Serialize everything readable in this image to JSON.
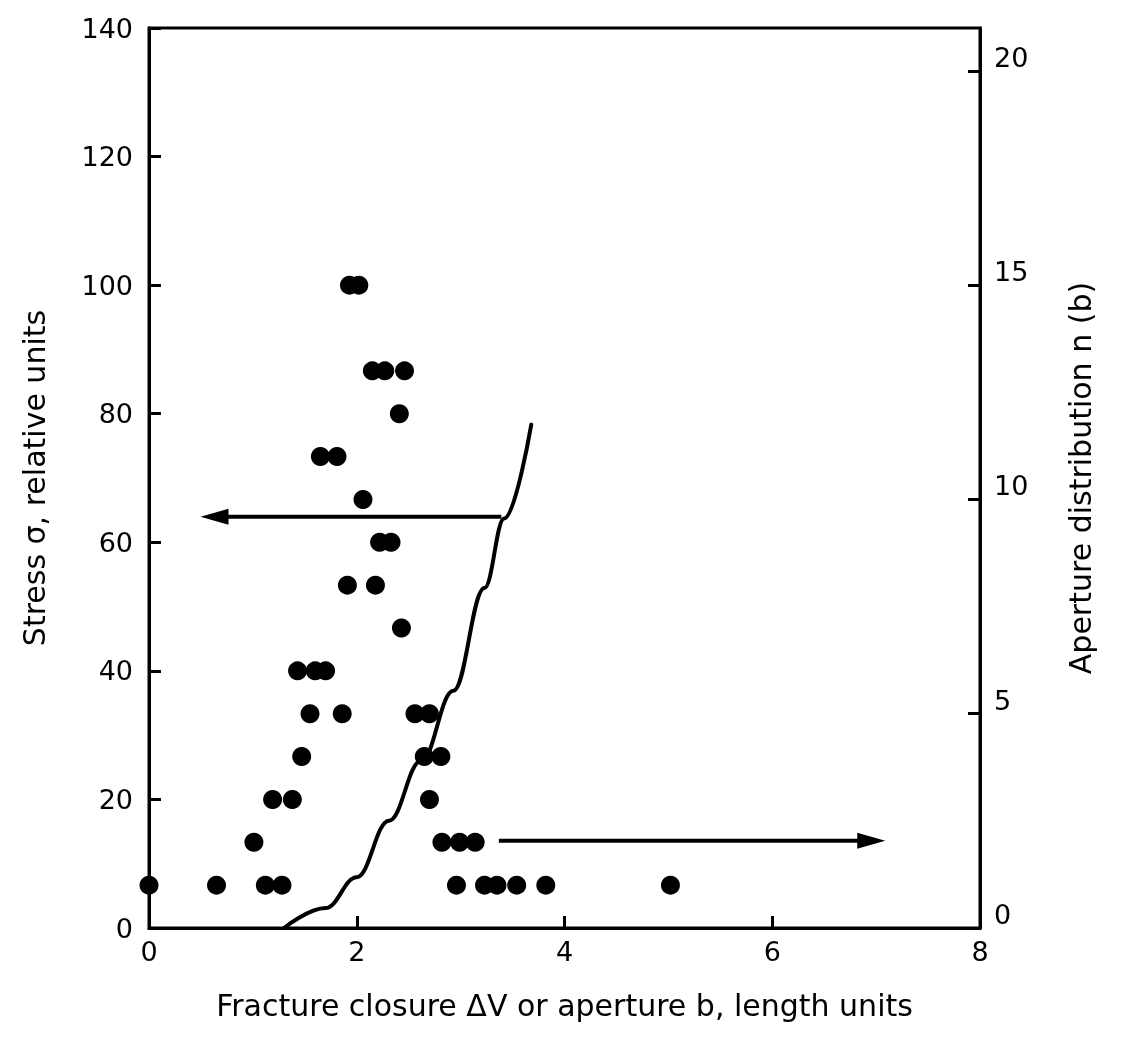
{
  "chart_data": {
    "type": "scatter",
    "xlabel": "Fracture closure ΔV or aperture b, length units",
    "ylabel": "Stress σ, relative units",
    "y2label": "Aperture distribution n (b)",
    "xlim": [
      0,
      8
    ],
    "xticks": [
      0,
      2,
      4,
      6,
      8
    ],
    "ylim": [
      0,
      140
    ],
    "yticks": [
      0,
      20,
      40,
      60,
      80,
      100,
      120,
      140
    ],
    "y2lim": [
      0,
      21
    ],
    "y2ticks": [
      0,
      5,
      10,
      15,
      20
    ],
    "grid": false,
    "legend": false,
    "series": [
      {
        "type": "line",
        "color": "#000000",
        "marker": "none",
        "line_style": "solid",
        "x": [
          1.3,
          1.7,
          2.0,
          2.31,
          2.62,
          2.93,
          3.23,
          3.42,
          3.68
        ],
        "values": [
          0,
          3.1,
          7.9,
          16.7,
          26,
          36.9,
          52.9,
          63.7,
          78.3
        ]
      },
      {
        "axis": "y2",
        "color": "#000000",
        "marker": "circle",
        "x": [
          0,
          0.65,
          1.12,
          1.28,
          2.96,
          3.23,
          3.35,
          3.54,
          3.82,
          5.02,
          1.01,
          2.82,
          2.99,
          3.14,
          1.19,
          1.38,
          2.7,
          1.47,
          2.65,
          2.81,
          1.55,
          1.86,
          2.56,
          2.7,
          1.43,
          1.6,
          1.7,
          2.43,
          1.91,
          2.18,
          2.22,
          2.33,
          2.06,
          1.65,
          1.81,
          2.41,
          2.15,
          2.27,
          2.46,
          1.93,
          2.02
        ],
        "values": [
          1,
          1,
          1,
          1,
          1,
          1,
          1,
          1,
          1,
          1,
          2,
          2,
          2,
          2,
          3,
          3,
          3,
          4,
          4,
          4,
          5,
          5,
          5,
          5,
          6,
          6,
          6,
          7,
          8,
          8,
          9,
          9,
          10,
          11,
          11,
          12,
          13,
          13,
          13,
          15,
          15
        ]
      }
    ]
  }
}
